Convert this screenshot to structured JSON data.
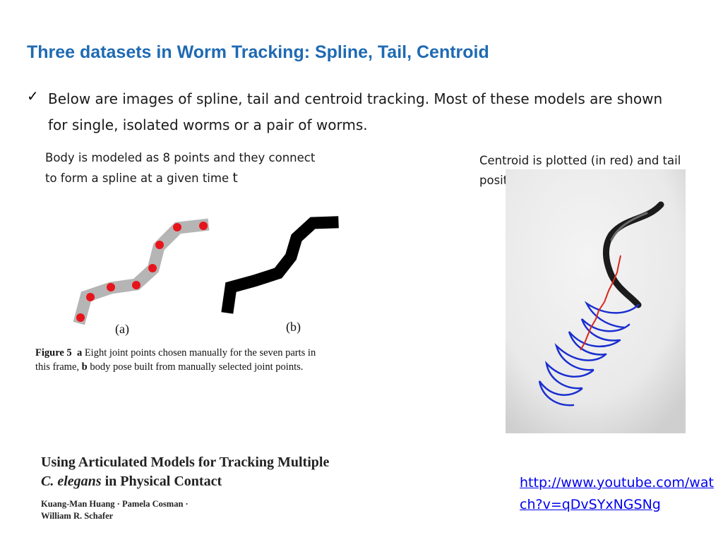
{
  "slide": {
    "title": "Three datasets in Worm Tracking: Spline, Tail, Centroid",
    "bullet": {
      "icon": "checkmark-icon",
      "line1": "Below are images of spline, tail and centroid tracking. Most of these models are shown",
      "line2": "for single, isolated  worms or a pair of worms."
    }
  },
  "left_caption": {
    "line1": "Body is modeled as 8 points and they connect",
    "line2_prefix": "to form a spline at a given time ",
    "line2_var": "t"
  },
  "right_caption": {
    "line1": "Centroid is plotted (in red) and tail",
    "line2": "position is plotted (in blue)"
  },
  "figure": {
    "panel_a_label": "(a)",
    "panel_b_label": "(b)",
    "caption_figure": "Figure 5",
    "caption_a": "a",
    "caption_text1": " Eight joint points chosen manually for the seven parts in",
    "caption_text2": "this frame, ",
    "caption_b": "b",
    "caption_text3": " body pose built from manually selected joint points.",
    "joint_point_color": "#E8141B",
    "spline_body_color": "#B5B5B5"
  },
  "tracking_image": {
    "centroid_color": "#D9261C",
    "tail_color": "#1A2FD0"
  },
  "paper": {
    "title_line1": "Using Articulated Models for Tracking Multiple",
    "title_line2_italic": "C. elegans",
    "title_line2_rest": " in Physical Contact",
    "authors_line1": "Kuang-Man Huang · Pamela Cosman ·",
    "authors_line2": "William R. Schafer"
  },
  "link": {
    "text": "http://www.youtube.com/watch?v=qDvSYxNGSNg"
  }
}
